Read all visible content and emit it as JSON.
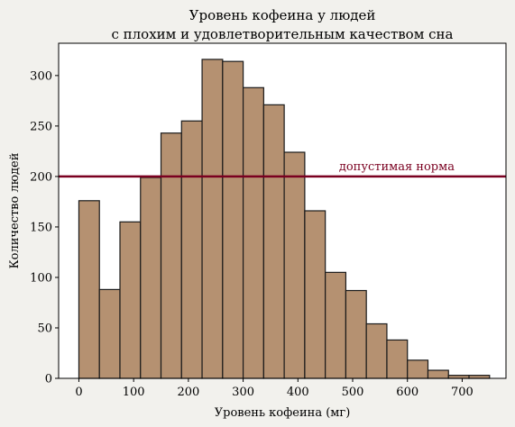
{
  "chart_data": {
    "type": "bar",
    "title_lines": [
      "Уровень кофеина у людей",
      "с плохим и удовлетворительным качеством сна"
    ],
    "xlabel": "Уровень кофеина (мг)",
    "ylabel": "Количество людей",
    "bin_edges": [
      0,
      37.5,
      75,
      112.5,
      150,
      187.5,
      225,
      262.5,
      300,
      337.5,
      375,
      412.5,
      450,
      487.5,
      525,
      562.5,
      600,
      637.5,
      675,
      712.5,
      750
    ],
    "values": [
      176,
      88,
      155,
      199,
      243,
      255,
      316,
      314,
      288,
      271,
      224,
      166,
      105,
      87,
      54,
      38,
      18,
      8,
      3,
      3
    ],
    "xlim": [
      -37,
      780
    ],
    "ylim": [
      0,
      332
    ],
    "xticks": [
      0,
      100,
      200,
      300,
      400,
      500,
      600,
      700
    ],
    "yticks": [
      0,
      50,
      100,
      150,
      200,
      250,
      300
    ],
    "bar_color": "#b59171",
    "bar_edge_color": "#1a1a1a",
    "reference_line": {
      "y": 200,
      "label": "допустимая норма",
      "label_x": 475,
      "color": "#7a0020"
    },
    "grid": false
  }
}
